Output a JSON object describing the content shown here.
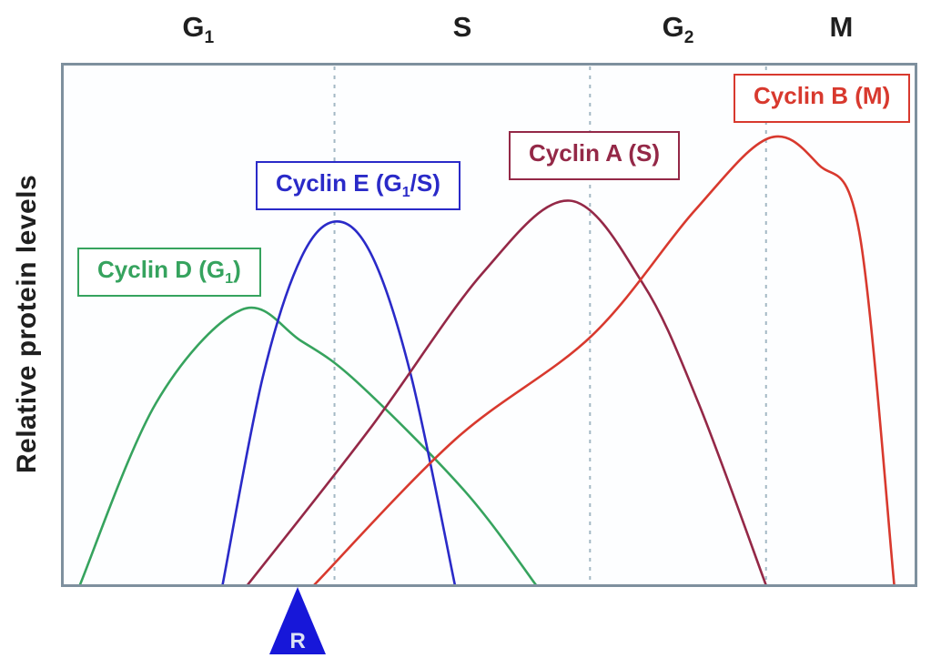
{
  "y_axis_label": "Relative protein levels",
  "phases": [
    {
      "pre": "G",
      "sub": "1"
    },
    {
      "pre": "S",
      "sub": ""
    },
    {
      "pre": "G",
      "sub": "2"
    },
    {
      "pre": "M",
      "sub": ""
    }
  ],
  "curve_labels": [
    {
      "pre": "Cyclin D (G",
      "sub": "1",
      "post": ")"
    },
    {
      "pre": "Cyclin E (G",
      "sub": "1",
      "post": "/S)"
    },
    {
      "pre": "Cyclin A (S)",
      "sub": "",
      "post": ""
    },
    {
      "pre": "Cyclin B (M)",
      "sub": "",
      "post": ""
    }
  ],
  "restriction_point": {
    "label": "R"
  },
  "colors": {
    "axis_border": "#7e909e",
    "phase_divider": "#a3b8c4",
    "plot_background": "#fdfeff",
    "restriction_marker": "#1717d9",
    "phase_label_text": "#1f1f1f",
    "y_label_text": "#1f1f1f",
    "cyclin_d": "#36a35e",
    "cyclin_e": "#2a2ac8",
    "cyclin_a": "#942847",
    "cyclin_b": "#d8392e"
  },
  "chart_data": {
    "type": "line",
    "title": "Cyclin protein levels across the cell cycle phases",
    "ylabel": "Relative protein levels",
    "x_axis": "cell-cycle progress (arbitrary units 0-100, no ticks shown)",
    "y_axis": "relative level (arbitrary units 0-100, no ticks shown)",
    "x_phase_labels": [
      "G1",
      "S",
      "G2",
      "M"
    ],
    "phase_boundaries_x": [
      31.9,
      61.8,
      82.4
    ],
    "restriction_point_x": 27.6,
    "grid": false,
    "legend": "boxed labels placed beside each curve",
    "series": [
      {
        "name": "Cyclin D (G1)",
        "color": "#36a35e",
        "points": [
          [
            2.1,
            0
          ],
          [
            11,
            35
          ],
          [
            21,
            53
          ],
          [
            28,
            47
          ],
          [
            34.6,
            39
          ],
          [
            47.2,
            18
          ],
          [
            55.5,
            0
          ]
        ]
      },
      {
        "name": "Cyclin E (G1/S)",
        "color": "#2a2ac8",
        "points": [
          [
            18.8,
            0
          ],
          [
            23.5,
            40
          ],
          [
            28,
            63
          ],
          [
            32.2,
            70
          ],
          [
            36.4,
            63
          ],
          [
            40.9,
            40
          ],
          [
            46,
            0
          ]
        ]
      },
      {
        "name": "Cyclin A (S)",
        "color": "#942847",
        "points": [
          [
            21.7,
            0
          ],
          [
            36,
            30
          ],
          [
            49.2,
            60
          ],
          [
            59.4,
            74
          ],
          [
            68,
            58
          ],
          [
            74.5,
            35
          ],
          [
            82.4,
            0
          ]
        ]
      },
      {
        "name": "Cyclin B (M)",
        "color": "#d8392e",
        "points": [
          [
            29.5,
            0
          ],
          [
            46,
            28
          ],
          [
            62,
            48
          ],
          [
            74,
            72
          ],
          [
            82.7,
            86
          ],
          [
            88.5,
            81
          ],
          [
            93.3,
            68
          ],
          [
            97.4,
            0
          ]
        ]
      }
    ]
  }
}
